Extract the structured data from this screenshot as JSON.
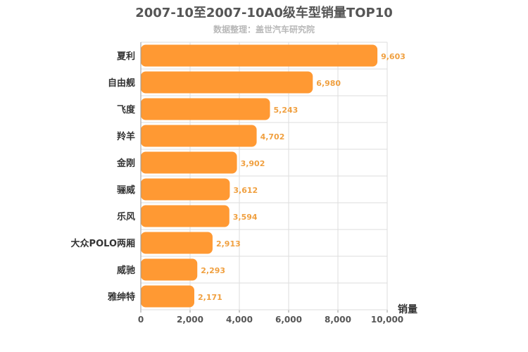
{
  "chart_data": {
    "type": "bar",
    "orientation": "horizontal",
    "title": "2007-10至2007-10A0级车型销量TOP10",
    "subtitle": "数据整理：盖世汽车研究院",
    "xlabel": "销量",
    "categories": [
      "夏利",
      "自由舰",
      "飞度",
      "羚羊",
      "金刚",
      "骊威",
      "乐风",
      "大众POLO两厢",
      "威驰",
      "雅绅特"
    ],
    "values": [
      9603,
      6980,
      5243,
      4702,
      3902,
      3612,
      3594,
      2913,
      2293,
      2171
    ],
    "value_labels": [
      "9,603",
      "6,980",
      "5,243",
      "4,702",
      "3,902",
      "3,612",
      "3,594",
      "2,913",
      "2,293",
      "2,171"
    ],
    "xlim": [
      0,
      10000
    ],
    "ticks": [
      0,
      2000,
      4000,
      6000,
      8000,
      10000
    ],
    "tick_labels": [
      "0",
      "2,000",
      "4,000",
      "6,000",
      "8,000",
      "10,000"
    ],
    "grid": true,
    "colors": {
      "bar": "#ff9933",
      "value_label": "#f0a040",
      "grid": "#dddddd"
    }
  }
}
